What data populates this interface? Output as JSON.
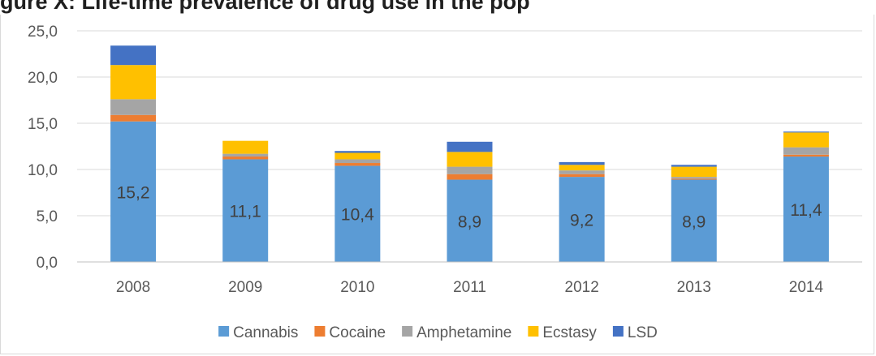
{
  "title": "gure X: Life-time prevalence of drug use in the pop",
  "chart_data": {
    "type": "bar",
    "stacked": true,
    "categories": [
      "2008",
      "2009",
      "2010",
      "2011",
      "2012",
      "2013",
      "2014"
    ],
    "series": [
      {
        "name": "Cannabis",
        "color": "#5b9bd5",
        "values": [
          15.2,
          11.1,
          10.4,
          8.9,
          9.2,
          8.9,
          11.4
        ],
        "labels": [
          "15,2",
          "11,1",
          "10,4",
          "8,9",
          "9,2",
          "8,9",
          "11,4"
        ]
      },
      {
        "name": "Cocaine",
        "color": "#ed7d31",
        "values": [
          0.7,
          0.3,
          0.3,
          0.6,
          0.3,
          0.1,
          0.2
        ]
      },
      {
        "name": "Amphetamine",
        "color": "#a5a5a5",
        "values": [
          1.7,
          0.3,
          0.4,
          0.8,
          0.4,
          0.2,
          0.8
        ]
      },
      {
        "name": "Ecstasy",
        "color": "#ffc000",
        "values": [
          3.7,
          1.4,
          0.7,
          1.6,
          0.6,
          1.1,
          1.6
        ]
      },
      {
        "name": "LSD",
        "color": "#4472c4",
        "values": [
          2.1,
          0.0,
          0.2,
          1.1,
          0.3,
          0.2,
          0.1
        ]
      }
    ],
    "ylim": [
      0,
      25
    ],
    "yticks": [
      "0,0",
      "5,0",
      "10,0",
      "15,0",
      "20,0",
      "25,0"
    ],
    "grid": true,
    "legend_position": "bottom"
  }
}
